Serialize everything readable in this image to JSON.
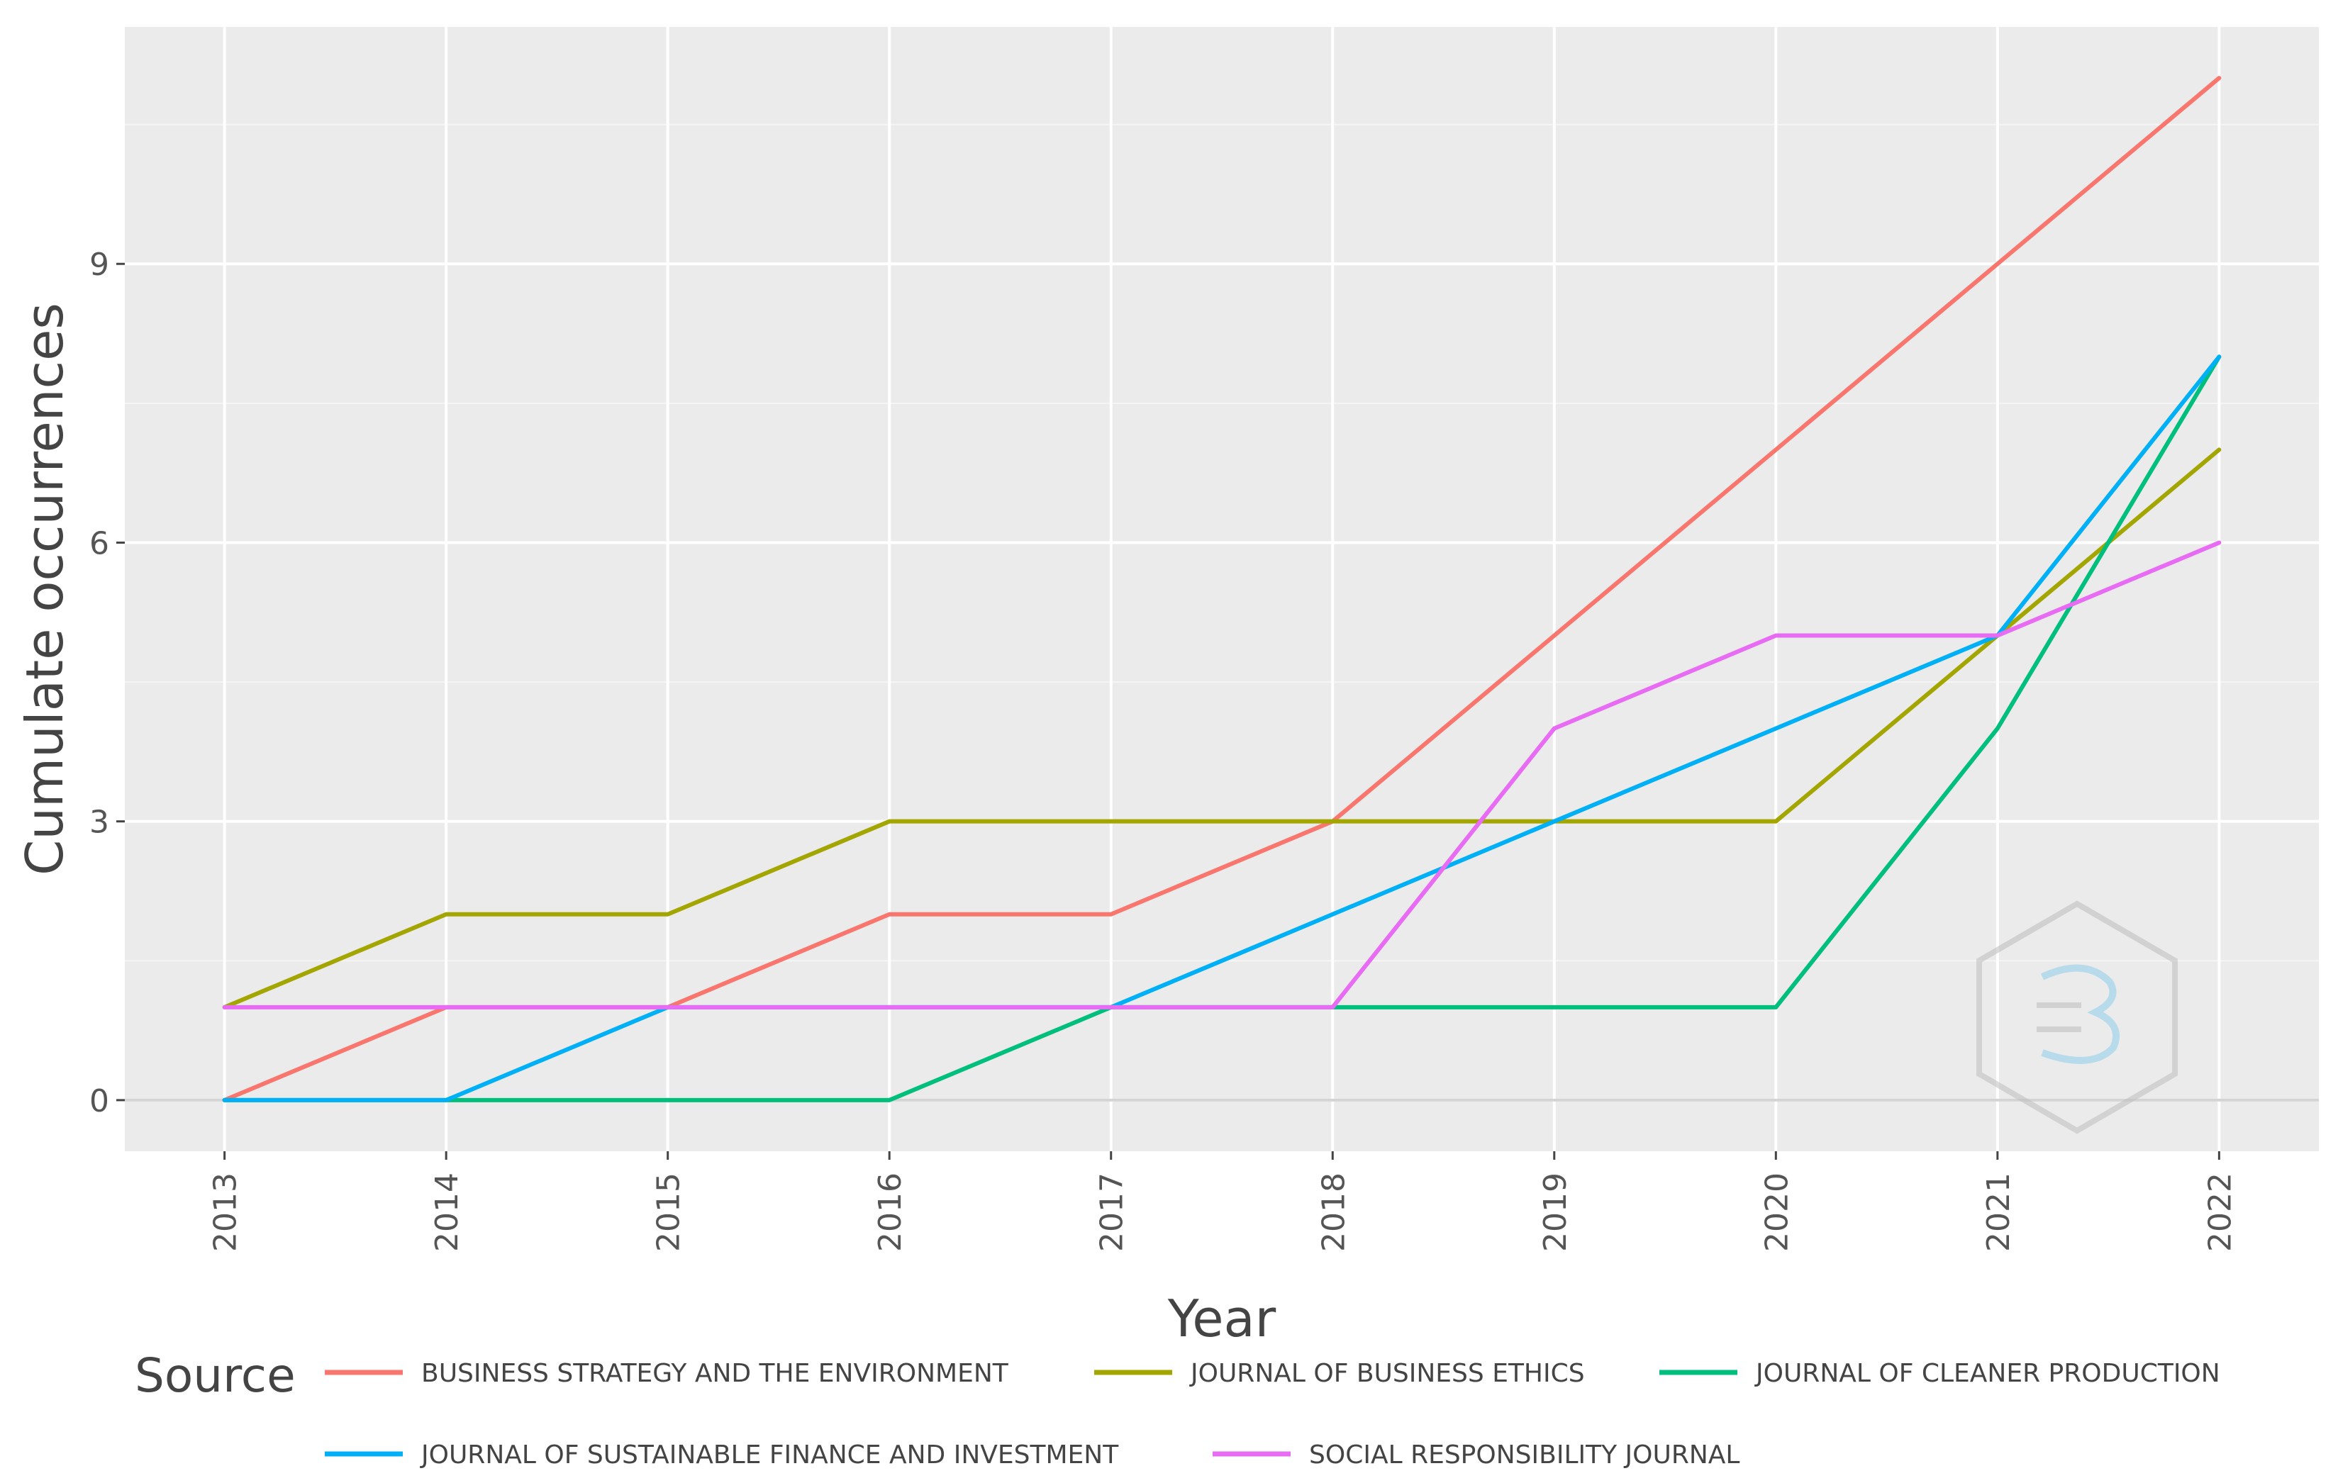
{
  "chart_data": {
    "type": "line",
    "title": "",
    "xlabel": "Year",
    "ylabel": "Cumulate occurrences",
    "x": [
      2013,
      2014,
      2015,
      2016,
      2017,
      2018,
      2019,
      2020,
      2021,
      2022
    ],
    "x_tick_labels": [
      "2013",
      "2014",
      "2015",
      "2016",
      "2017",
      "2018",
      "2019",
      "2020",
      "2021",
      "2022"
    ],
    "y_ticks": [
      0,
      3,
      6,
      9
    ],
    "y_tick_labels": [
      "0",
      "3",
      "6",
      "9"
    ],
    "xlim": [
      2012.55,
      2022.45
    ],
    "ylim": [
      -0.55,
      11.55
    ],
    "grid": true,
    "legend_title": "Source",
    "legend_position": "bottom",
    "series": [
      {
        "name": "BUSINESS STRATEGY AND THE ENVIRONMENT",
        "color": "#F8766D",
        "values": [
          0,
          1,
          1,
          2,
          2,
          3,
          5,
          7,
          9,
          11
        ]
      },
      {
        "name": "JOURNAL OF BUSINESS ETHICS",
        "color": "#A3A500",
        "values": [
          1,
          2,
          2,
          3,
          3,
          3,
          3,
          3,
          5,
          7
        ]
      },
      {
        "name": "JOURNAL OF CLEANER PRODUCTION",
        "color": "#00BF7D",
        "values": [
          0,
          0,
          0,
          0,
          1,
          1,
          1,
          1,
          4,
          8
        ]
      },
      {
        "name": "JOURNAL OF SUSTAINABLE FINANCE AND INVESTMENT",
        "color": "#00B0F6",
        "values": [
          0,
          0,
          1,
          1,
          1,
          2,
          3,
          4,
          5,
          8
        ]
      },
      {
        "name": "SOCIAL RESPONSIBILITY JOURNAL",
        "color": "#E76BF3",
        "values": [
          1,
          1,
          1,
          1,
          1,
          1,
          4,
          5,
          5,
          6
        ]
      }
    ]
  },
  "watermark": {
    "icon": "bibliometrix-logo-icon"
  }
}
